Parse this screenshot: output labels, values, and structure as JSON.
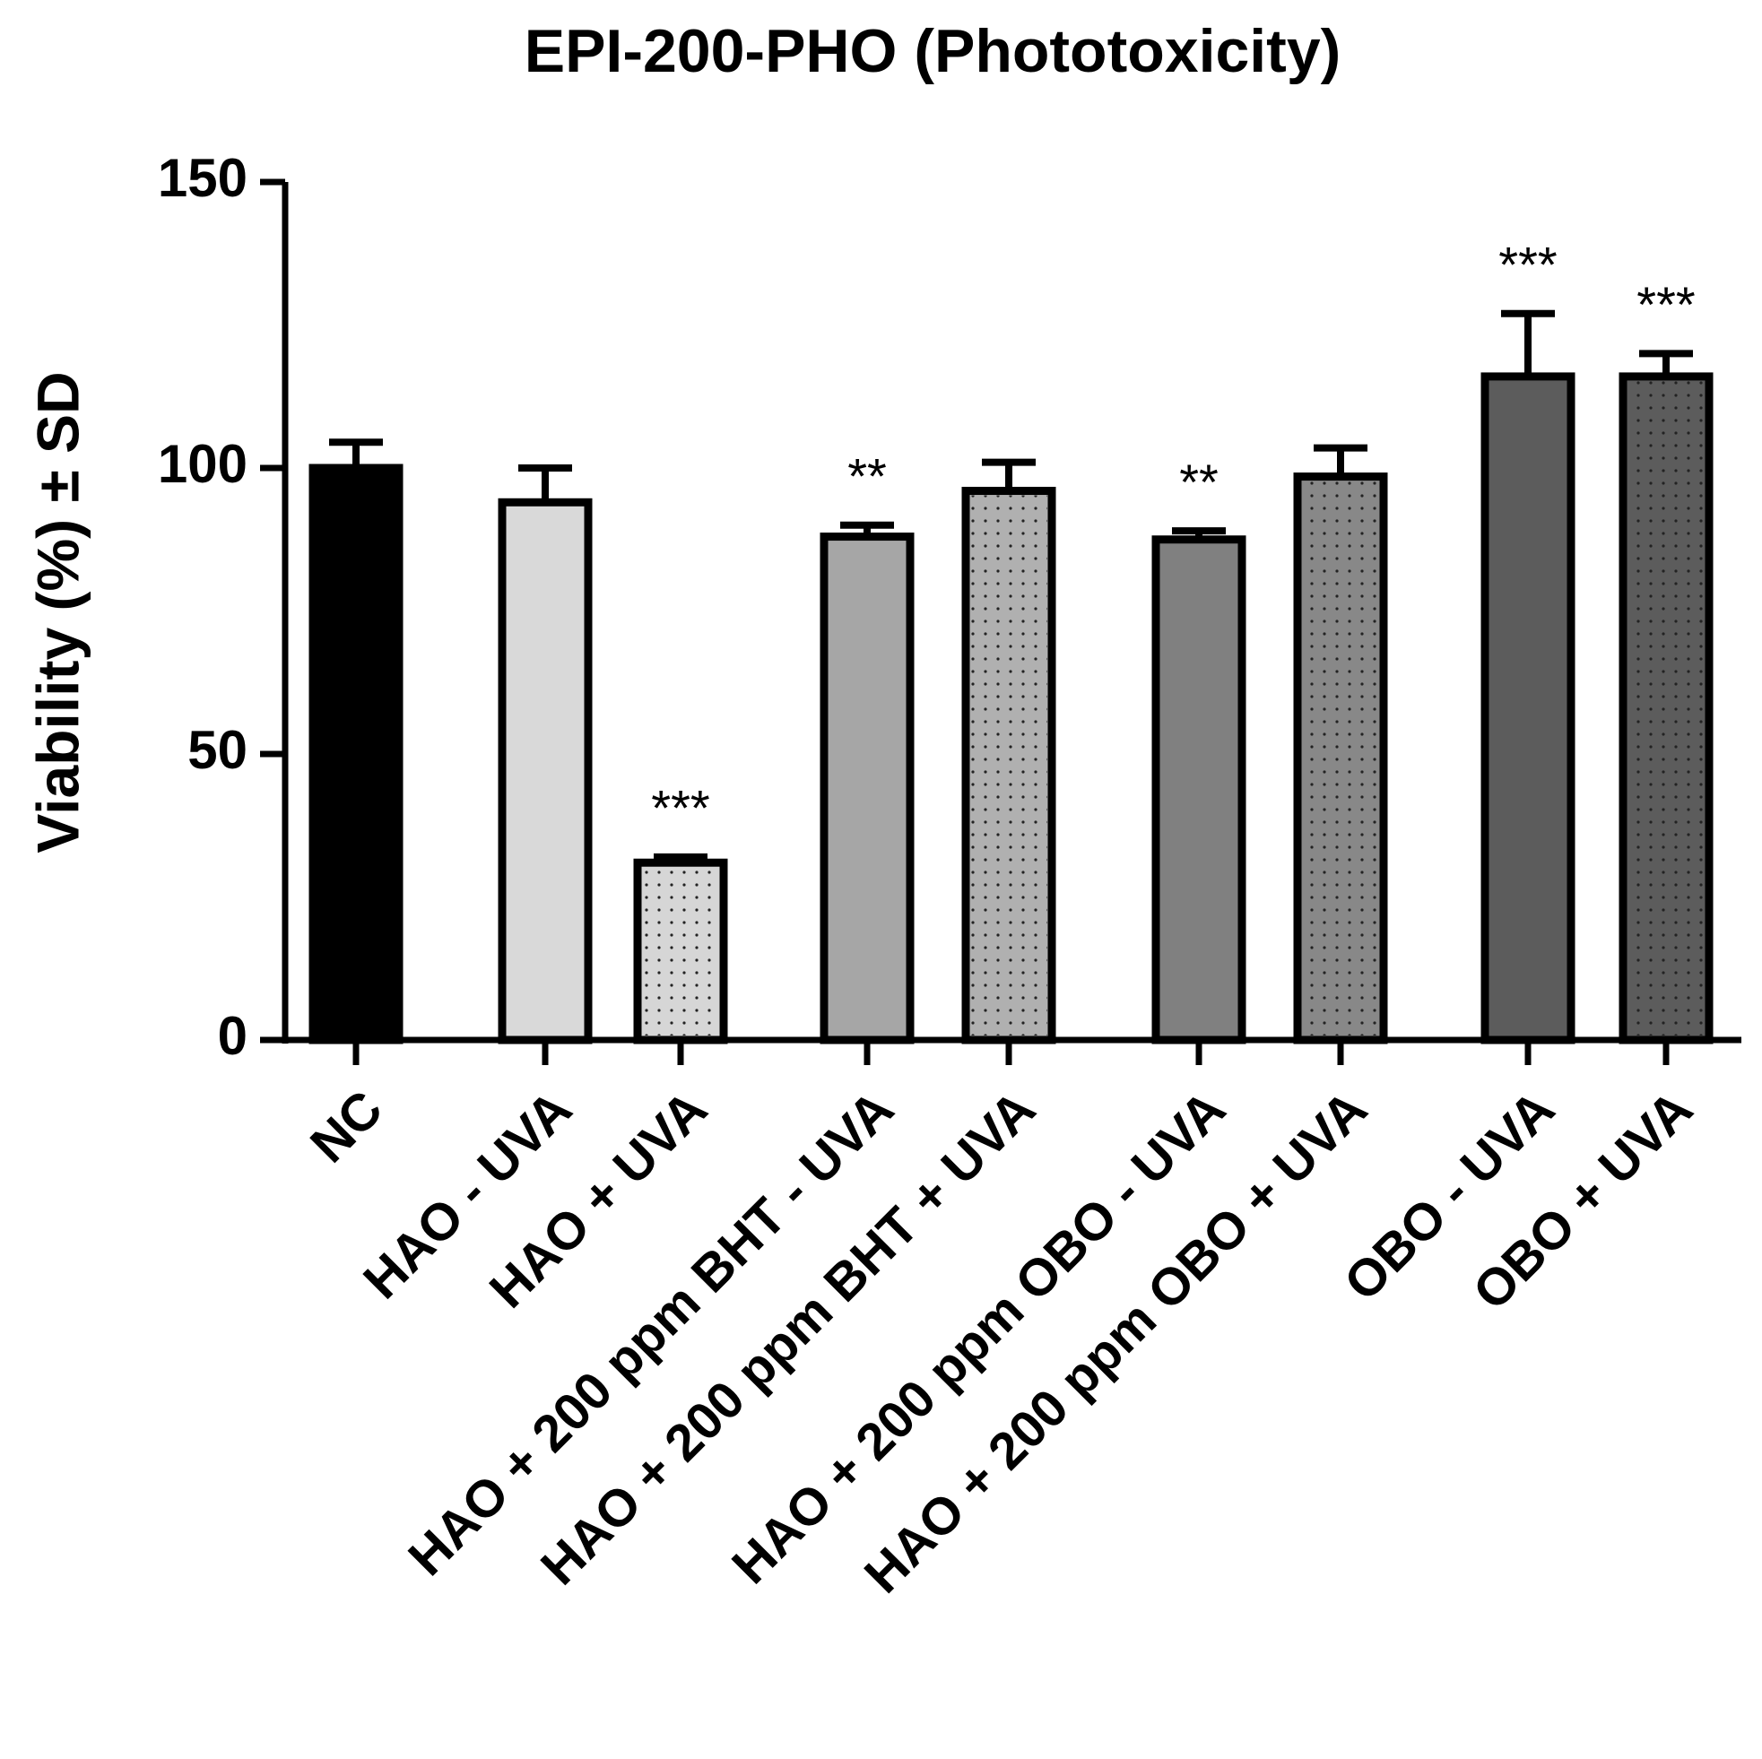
{
  "chart_data": {
    "type": "bar",
    "title": "EPI-200-PHO (Phototoxicity)",
    "y_label": "Viability (%) ± SD",
    "categories": [
      "NC",
      "HAO - UVA",
      "HAO + UVA",
      "HAO + 200 ppm BHT - UVA",
      "HAO + 200 ppm BHT + UVA",
      "HAO + 200 ppm OBO - UVA",
      "HAO + 200 ppm OBO + UVA",
      "OBO  - UVA",
      "OBO  + UVA"
    ],
    "values": [
      100,
      94,
      31,
      88,
      96,
      87.5,
      98.5,
      116,
      116
    ],
    "errors": [
      4.5,
      6,
      1,
      2,
      5,
      1.5,
      5,
      11,
      4
    ],
    "annotations": [
      null,
      null,
      "***",
      "**",
      null,
      "**",
      null,
      "***",
      "***"
    ],
    "colors": [
      "#000000",
      "#d9d9d9",
      "#d6d6d6",
      "#a6a6a6",
      "#b0b0b0",
      "#808080",
      "#888888",
      "#5c5c5c",
      "#5c5c5c"
    ],
    "dotted": [
      false,
      false,
      true,
      false,
      true,
      false,
      true,
      false,
      true
    ],
    "ylim": [
      0,
      150
    ],
    "yticks": [
      0,
      50,
      100,
      150
    ]
  }
}
